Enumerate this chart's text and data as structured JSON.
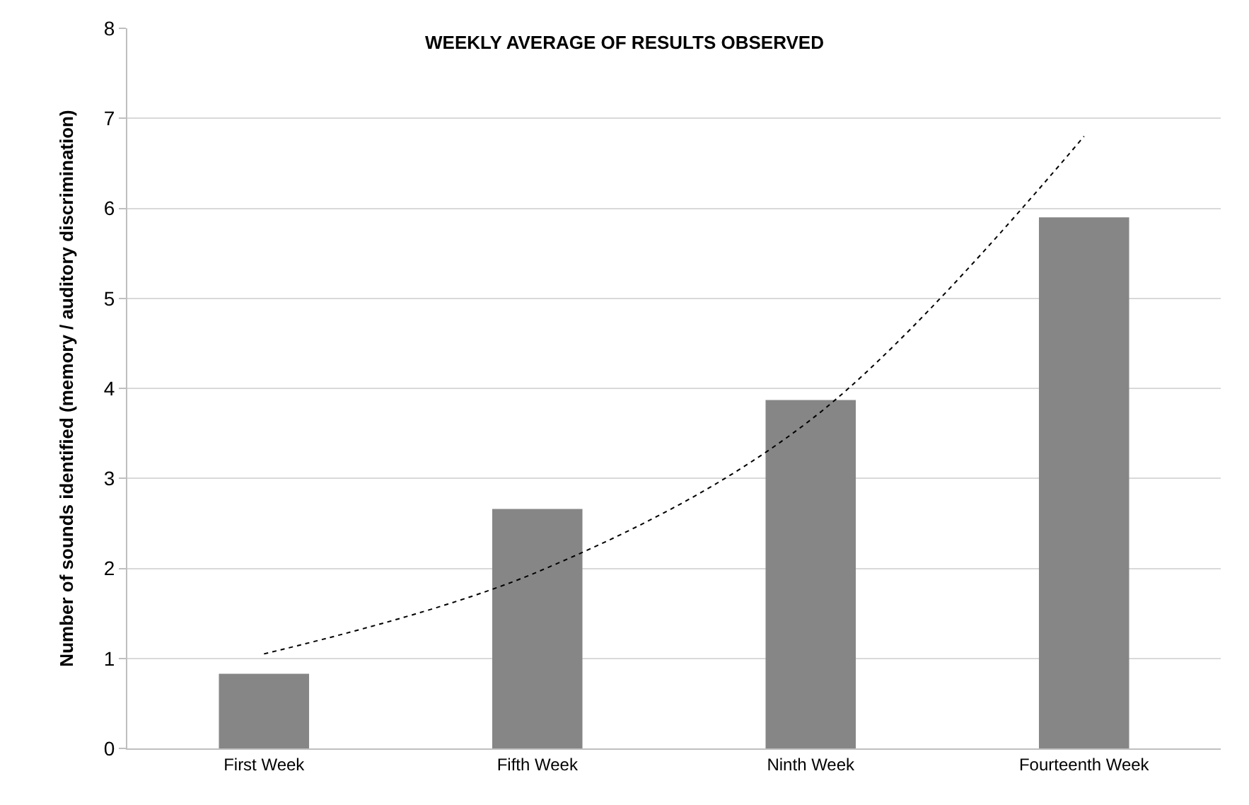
{
  "chart_data": {
    "type": "bar",
    "title": "WEEKLY AVERAGE OF RESULTS OBSERVED",
    "ylabel": "Number of sounds identified (memory / auditory discrimination)",
    "categories": [
      "First Week",
      "Fifth Week",
      "Ninth Week",
      "Fourteenth Week"
    ],
    "series": [
      {
        "color": "#868686",
        "values": [
          0.83,
          2.66,
          3.87,
          5.9
        ]
      },
      {
        "type": "line",
        "color": "#000000",
        "line_style": "dotted",
        "values": [
          1.05,
          1.96,
          3.65,
          6.8
        ]
      }
    ],
    "ylim": [
      0,
      8
    ],
    "yticks": [
      0,
      1,
      2,
      3,
      4,
      5,
      6,
      7,
      8
    ],
    "grid": "y"
  }
}
